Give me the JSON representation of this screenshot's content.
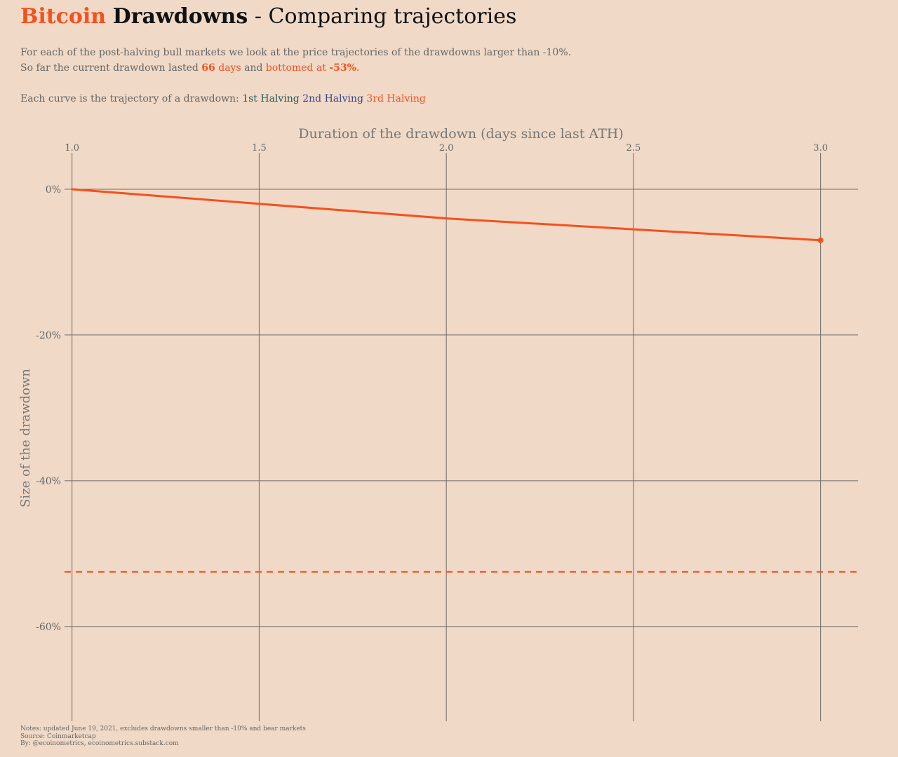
{
  "title": {
    "part1": "Bitcoin",
    "part2": "Drawdowns",
    "part3": "- Comparing trajectories"
  },
  "subtitle": {
    "line1": "For each of the post-halving bull markets we look at the price trajectories of the drawdowns larger than -10%.",
    "line2_prefix": "So far the current drawdown lasted ",
    "days_value": "66",
    "days_label": " days",
    "and_text": " and ",
    "bottomed_label": "bottomed at ",
    "bottom_value": "-53%",
    "period": ".",
    "legend_prefix": "Each curve is the trajectory of a drawdown: ",
    "legend_1": "1st Halving",
    "legend_2": "2nd Halving",
    "legend_3": "3rd Halving"
  },
  "colors": {
    "halving_1": "#2a5a5a",
    "halving_2": "#36458a",
    "halving_3": "#f4511e",
    "background": "#f0d9c6"
  },
  "chart_data": {
    "type": "line",
    "xlabel": "Duration of the drawdown (days since last ATH)",
    "ylabel": "Size of the drawdown",
    "xlim": [
      0.98,
      3.1
    ],
    "ylim": [
      -73,
      5
    ],
    "x_ticks": [
      1.0,
      1.5,
      2.0,
      2.5,
      3.0
    ],
    "x_tick_labels": [
      "1.0",
      "1.5",
      "2.0",
      "2.5",
      "3.0"
    ],
    "y_ticks": [
      0,
      -20,
      -40,
      -60
    ],
    "y_tick_labels": [
      "0%",
      "-20%",
      "-40%",
      "-60%"
    ],
    "x_axis_position": "top",
    "grid": true,
    "series": [
      {
        "name": "3rd Halving",
        "color": "#f4511e",
        "x": [
          1,
          2,
          3
        ],
        "y": [
          0,
          -4,
          -7
        ]
      }
    ],
    "reference_line": {
      "y": -52.5,
      "style": "dashed",
      "color": "#f4511e"
    }
  },
  "notes": {
    "line1": "Notes: updated June 19, 2021, excludes drawdowns smaller than -10% and bear markets",
    "line2": "Source: Coinmarketcap",
    "line3": "By: @ecoinometrics, ecoinometrics.substack.com"
  }
}
